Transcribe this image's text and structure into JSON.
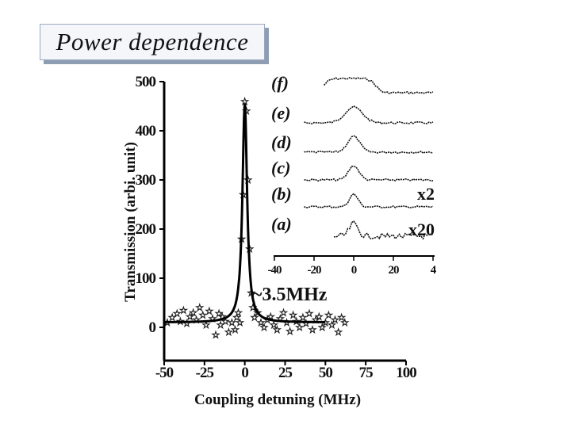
{
  "page": {
    "title": "Power dependence"
  },
  "chart_data": [
    {
      "type": "scatter",
      "xlabel": "Coupling detuning (MHz)",
      "ylabel": "Transmission (arbi. unit)",
      "xlim": [
        -50,
        100
      ],
      "ylim": [
        0,
        500
      ],
      "x_ticks": [
        "-50",
        "-25",
        "0",
        "25",
        "50",
        "75",
        "100"
      ],
      "y_ticks": [
        "0",
        "100",
        "200",
        "300",
        "400",
        "500"
      ],
      "series": [
        {
          "kind": "stars",
          "x": [
            -48,
            -45,
            -42,
            -40,
            -38,
            -36,
            -34,
            -32,
            -30,
            -28,
            -26,
            -24,
            -22,
            -20,
            -18,
            -16,
            -15,
            -14,
            -12,
            -10,
            -8,
            -6,
            -5,
            -4,
            -3,
            -2,
            -1,
            0,
            1,
            2,
            3,
            4,
            5,
            6,
            8,
            10,
            12,
            14,
            16,
            18,
            20,
            22,
            24,
            26,
            28,
            30,
            32,
            34,
            36,
            38,
            40,
            42,
            44,
            46,
            48,
            50,
            52,
            54,
            56,
            58,
            60,
            62
          ],
          "y": [
            10,
            20,
            28,
            12,
            35,
            8,
            22,
            30,
            15,
            40,
            25,
            5,
            33,
            18,
            -15,
            28,
            5,
            22,
            12,
            -10,
            10,
            -5,
            20,
            30,
            10,
            180,
            270,
            460,
            440,
            300,
            160,
            70,
            40,
            20,
            30,
            10,
            0,
            15,
            22,
            5,
            -5,
            18,
            30,
            10,
            -8,
            25,
            12,
            0,
            20,
            8,
            28,
            -5,
            15,
            22,
            0,
            10,
            25,
            5,
            15,
            -10,
            20,
            10
          ]
        },
        {
          "kind": "fit",
          "center": 0,
          "fwhm": 3.5,
          "peak": 455,
          "baseline": 10,
          "xrange": [
            -50,
            50
          ]
        }
      ],
      "annotations": [
        "~3.5MHz"
      ]
    },
    {
      "type": "line",
      "xlim": [
        -40,
        40
      ],
      "x_ticks": [
        "-40",
        "-20",
        "0",
        "20",
        "4"
      ],
      "series": [
        {
          "name": "(f)",
          "shape": "broad",
          "width": 28,
          "amp": 18
        },
        {
          "name": "(e)",
          "shape": "peak",
          "width": 10,
          "amp": 20
        },
        {
          "name": "(d)",
          "shape": "peak",
          "width": 7,
          "amp": 20
        },
        {
          "name": "(c)",
          "shape": "peak",
          "width": 6,
          "amp": 18
        },
        {
          "name": "(b)",
          "shape": "peak",
          "width": 5,
          "amp": 16,
          "multiplier": "x2"
        },
        {
          "name": "(a)",
          "shape": "peak",
          "width": 5,
          "amp": 16,
          "multiplier": "x20"
        }
      ]
    }
  ]
}
